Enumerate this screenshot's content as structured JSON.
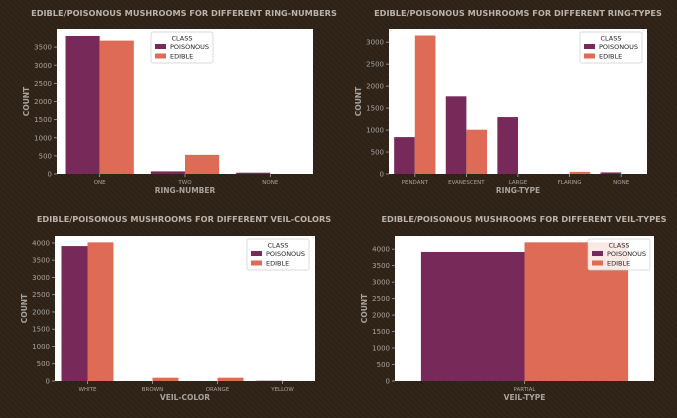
{
  "colors": {
    "poisonous": "#772a5a",
    "edible": "#dd6b55",
    "title": "#b9b3ac",
    "axis_text": "#a8a39d",
    "legend_border": "#cccccc"
  },
  "legend": {
    "title": "CLASS",
    "items": [
      "POISONOUS",
      "EDIBLE"
    ]
  },
  "chart_data": [
    {
      "type": "bar",
      "title": "EDIBLE/POISONOUS MUSHROOMS FOR DIFFERENT RING-NUMBERS",
      "xlabel": "RING-NUMBER",
      "ylabel": "COUNT",
      "categories": [
        "ONE",
        "TWO",
        "NONE"
      ],
      "ylim": [
        0,
        4000
      ],
      "yticks": [
        0,
        500,
        1000,
        1500,
        2000,
        2500,
        3000,
        3500
      ],
      "legend_position": "top-center",
      "series": [
        {
          "name": "POISONOUS",
          "values": [
            3808,
            72,
            36
          ]
        },
        {
          "name": "EDIBLE",
          "values": [
            3680,
            528,
            0
          ]
        }
      ]
    },
    {
      "type": "bar",
      "title": "EDIBLE/POISONOUS MUSHROOMS FOR DIFFERENT RING-TYPES",
      "xlabel": "RING-TYPE",
      "ylabel": "COUNT",
      "categories": [
        "PENDANT",
        "EVANESCENT",
        "LARGE",
        "FLARING",
        "NONE"
      ],
      "ylim": [
        0,
        3300
      ],
      "yticks": [
        0,
        500,
        1000,
        1500,
        2000,
        2500,
        3000
      ],
      "legend_position": "top-right",
      "series": [
        {
          "name": "POISONOUS",
          "values": [
            840,
            1768,
            1296,
            0,
            36
          ]
        },
        {
          "name": "EDIBLE",
          "values": [
            3152,
            1008,
            0,
            48,
            0
          ]
        }
      ]
    },
    {
      "type": "bar",
      "title": "EDIBLE/POISONOUS MUSHROOMS FOR DIFFERENT VEIL-COLORS",
      "xlabel": "VEIL-COLOR",
      "ylabel": "COUNT",
      "categories": [
        "WHITE",
        "BROWN",
        "ORANGE",
        "YELLOW"
      ],
      "ylim": [
        0,
        4200
      ],
      "yticks": [
        0,
        500,
        1000,
        1500,
        2000,
        2500,
        3000,
        3500,
        4000
      ],
      "legend_position": "top-right",
      "series": [
        {
          "name": "POISONOUS",
          "values": [
            3908,
            0,
            0,
            8
          ]
        },
        {
          "name": "EDIBLE",
          "values": [
            4016,
            96,
            96,
            0
          ]
        }
      ]
    },
    {
      "type": "bar",
      "title": "EDIBLE/POISONOUS MUSHROOMS FOR DIFFERENT VEIL-TYPES",
      "xlabel": "VEIL-TYPE",
      "ylabel": "COUNT",
      "categories": [
        "PARTIAL"
      ],
      "ylim": [
        0,
        4400
      ],
      "yticks": [
        0,
        500,
        1000,
        1500,
        2000,
        2500,
        3000,
        3500,
        4000
      ],
      "legend_position": "top-right",
      "series": [
        {
          "name": "POISONOUS",
          "values": [
            3916
          ]
        },
        {
          "name": "EDIBLE",
          "values": [
            4208
          ]
        }
      ]
    }
  ]
}
